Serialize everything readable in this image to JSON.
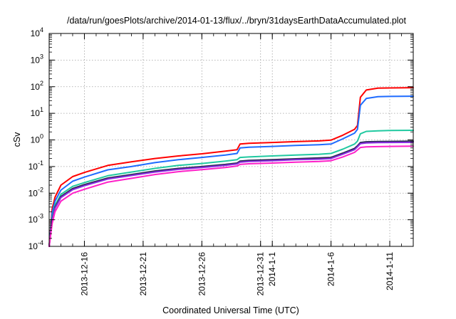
{
  "chart_data": {
    "type": "line",
    "title": "/data/run/goesPlots/archive/2014-01-13/flux/../bryn/31daysEarthDataAccumulated.plot",
    "xlabel": "Coordinated Universal Time (UTC)",
    "ylabel": "cSv",
    "y_scale": "log",
    "ylim": [
      0.0001,
      10000
    ],
    "xlim": [
      "2013-12-13",
      "2014-01-13"
    ],
    "grid": true,
    "y_ticks": [
      {
        "mant": "10",
        "exp": "-4",
        "value": 0.0001
      },
      {
        "mant": "10",
        "exp": "-3",
        "value": 0.001
      },
      {
        "mant": "10",
        "exp": "-2",
        "value": 0.01
      },
      {
        "mant": "10",
        "exp": "-1",
        "value": 0.1
      },
      {
        "mant": "10",
        "exp": "0",
        "value": 1
      },
      {
        "mant": "10",
        "exp": "1",
        "value": 10
      },
      {
        "mant": "10",
        "exp": "2",
        "value": 100
      },
      {
        "mant": "10",
        "exp": "3",
        "value": 1000
      },
      {
        "mant": "10",
        "exp": "4",
        "value": 10000
      }
    ],
    "x_ticks": [
      {
        "label": "2013-12-16",
        "date": "2013-12-16"
      },
      {
        "label": "2013-12-21",
        "date": "2013-12-21"
      },
      {
        "label": "2013-12-26",
        "date": "2013-12-26"
      },
      {
        "label": "2013-12-31",
        "date": "2013-12-31"
      },
      {
        "label": "2014-1-1",
        "date": "2014-01-01"
      },
      {
        "label": "2014-1-6",
        "date": "2014-01-06"
      },
      {
        "label": "2014-1-11",
        "date": "2014-01-11"
      }
    ],
    "series": [
      {
        "color": "#ff0000",
        "points": [
          [
            "2013-12-13",
            0.0001
          ],
          [
            "2013-12-13T06",
            0.0025
          ],
          [
            "2013-12-13T12",
            0.007
          ],
          [
            "2013-12-14",
            0.02
          ],
          [
            "2013-12-15",
            0.042
          ],
          [
            "2013-12-16",
            0.06
          ],
          [
            "2013-12-18",
            0.11
          ],
          [
            "2013-12-20",
            0.15
          ],
          [
            "2013-12-22",
            0.2
          ],
          [
            "2013-12-24",
            0.25
          ],
          [
            "2013-12-26",
            0.3
          ],
          [
            "2013-12-28",
            0.38
          ],
          [
            "2013-12-29",
            0.43
          ],
          [
            "2013-12-29T06",
            0.7
          ],
          [
            "2013-12-30",
            0.75
          ],
          [
            "2014-01-01",
            0.8
          ],
          [
            "2014-01-03",
            0.86
          ],
          [
            "2014-01-05",
            0.92
          ],
          [
            "2014-01-06",
            0.98
          ],
          [
            "2014-01-07",
            1.5
          ],
          [
            "2014-01-08",
            2.5
          ],
          [
            "2014-01-08T06",
            3.5
          ],
          [
            "2014-01-08T12",
            40
          ],
          [
            "2014-01-09",
            75
          ],
          [
            "2014-01-10",
            88
          ],
          [
            "2014-01-11",
            90
          ],
          [
            "2014-01-13",
            92
          ]
        ]
      },
      {
        "color": "#1e6bff",
        "points": [
          [
            "2013-12-13",
            0.0001
          ],
          [
            "2013-12-13T06",
            0.0018
          ],
          [
            "2013-12-13T12",
            0.005
          ],
          [
            "2013-12-14",
            0.013
          ],
          [
            "2013-12-15",
            0.028
          ],
          [
            "2013-12-16",
            0.04
          ],
          [
            "2013-12-18",
            0.075
          ],
          [
            "2013-12-20",
            0.1
          ],
          [
            "2013-12-22",
            0.14
          ],
          [
            "2013-12-24",
            0.18
          ],
          [
            "2013-12-26",
            0.22
          ],
          [
            "2013-12-28",
            0.27
          ],
          [
            "2013-12-29",
            0.31
          ],
          [
            "2013-12-29T06",
            0.5
          ],
          [
            "2013-12-30",
            0.53
          ],
          [
            "2014-01-01",
            0.57
          ],
          [
            "2014-01-03",
            0.62
          ],
          [
            "2014-01-05",
            0.66
          ],
          [
            "2014-01-06",
            0.7
          ],
          [
            "2014-01-07",
            1.1
          ],
          [
            "2014-01-08",
            1.8
          ],
          [
            "2014-01-08T06",
            2.5
          ],
          [
            "2014-01-08T12",
            20
          ],
          [
            "2014-01-09",
            36
          ],
          [
            "2014-01-10",
            42
          ],
          [
            "2014-01-11",
            43
          ],
          [
            "2014-01-13",
            44
          ]
        ]
      },
      {
        "color": "#20c9a0",
        "points": [
          [
            "2013-12-13",
            0.0001
          ],
          [
            "2013-12-13T06",
            0.0012
          ],
          [
            "2013-12-13T12",
            0.0035
          ],
          [
            "2013-12-14",
            0.009
          ],
          [
            "2013-12-15",
            0.018
          ],
          [
            "2013-12-16",
            0.025
          ],
          [
            "2013-12-18",
            0.045
          ],
          [
            "2013-12-20",
            0.062
          ],
          [
            "2013-12-22",
            0.085
          ],
          [
            "2013-12-24",
            0.11
          ],
          [
            "2013-12-26",
            0.13
          ],
          [
            "2013-12-28",
            0.16
          ],
          [
            "2013-12-29",
            0.18
          ],
          [
            "2013-12-29T06",
            0.22
          ],
          [
            "2013-12-30",
            0.23
          ],
          [
            "2014-01-01",
            0.25
          ],
          [
            "2014-01-03",
            0.27
          ],
          [
            "2014-01-05",
            0.29
          ],
          [
            "2014-01-06",
            0.31
          ],
          [
            "2014-01-07",
            0.45
          ],
          [
            "2014-01-08",
            0.7
          ],
          [
            "2014-01-08T06",
            0.9
          ],
          [
            "2014-01-08T12",
            1.7
          ],
          [
            "2014-01-09",
            2.1
          ],
          [
            "2014-01-10",
            2.2
          ],
          [
            "2014-01-11",
            2.25
          ],
          [
            "2014-01-13",
            2.3
          ]
        ]
      },
      {
        "color": "#2a2a50",
        "points": [
          [
            "2013-12-13",
            0.0001
          ],
          [
            "2013-12-13T06",
            0.001
          ],
          [
            "2013-12-13T12",
            0.003
          ],
          [
            "2013-12-14",
            0.0075
          ],
          [
            "2013-12-15",
            0.015
          ],
          [
            "2013-12-16",
            0.021
          ],
          [
            "2013-12-18",
            0.037
          ],
          [
            "2013-12-20",
            0.05
          ],
          [
            "2013-12-22",
            0.068
          ],
          [
            "2013-12-24",
            0.085
          ],
          [
            "2013-12-26",
            0.1
          ],
          [
            "2013-12-28",
            0.12
          ],
          [
            "2013-12-29",
            0.135
          ],
          [
            "2013-12-29T06",
            0.16
          ],
          [
            "2013-12-30",
            0.17
          ],
          [
            "2014-01-01",
            0.18
          ],
          [
            "2014-01-03",
            0.195
          ],
          [
            "2014-01-05",
            0.21
          ],
          [
            "2014-01-06",
            0.22
          ],
          [
            "2014-01-07",
            0.32
          ],
          [
            "2014-01-08",
            0.48
          ],
          [
            "2014-01-08T06",
            0.6
          ],
          [
            "2014-01-08T12",
            0.8
          ],
          [
            "2014-01-09",
            0.85
          ],
          [
            "2014-01-10",
            0.87
          ],
          [
            "2014-01-11",
            0.88
          ],
          [
            "2014-01-13",
            0.9
          ]
        ]
      },
      {
        "color": "#8a2be2",
        "points": [
          [
            "2013-12-13",
            0.0001
          ],
          [
            "2013-12-13T06",
            0.0009
          ],
          [
            "2013-12-13T12",
            0.0027
          ],
          [
            "2013-12-14",
            0.0068
          ],
          [
            "2013-12-15",
            0.0135
          ],
          [
            "2013-12-16",
            0.019
          ],
          [
            "2013-12-18",
            0.034
          ],
          [
            "2013-12-20",
            0.046
          ],
          [
            "2013-12-22",
            0.062
          ],
          [
            "2013-12-24",
            0.078
          ],
          [
            "2013-12-26",
            0.092
          ],
          [
            "2013-12-28",
            0.11
          ],
          [
            "2013-12-29",
            0.125
          ],
          [
            "2013-12-29T06",
            0.145
          ],
          [
            "2013-12-30",
            0.155
          ],
          [
            "2014-01-01",
            0.165
          ],
          [
            "2014-01-03",
            0.18
          ],
          [
            "2014-01-05",
            0.19
          ],
          [
            "2014-01-06",
            0.2
          ],
          [
            "2014-01-07",
            0.29
          ],
          [
            "2014-01-08",
            0.43
          ],
          [
            "2014-01-08T06",
            0.55
          ],
          [
            "2014-01-08T12",
            0.72
          ],
          [
            "2014-01-09",
            0.77
          ],
          [
            "2014-01-10",
            0.79
          ],
          [
            "2014-01-11",
            0.8
          ],
          [
            "2014-01-13",
            0.81
          ]
        ]
      },
      {
        "color": "#ff1fc8",
        "points": [
          [
            "2013-12-13",
            0.0001
          ],
          [
            "2013-12-13T06",
            0.0007
          ],
          [
            "2013-12-13T12",
            0.002
          ],
          [
            "2013-12-14",
            0.005
          ],
          [
            "2013-12-15",
            0.01
          ],
          [
            "2013-12-16",
            0.014
          ],
          [
            "2013-12-18",
            0.026
          ],
          [
            "2013-12-20",
            0.036
          ],
          [
            "2013-12-22",
            0.05
          ],
          [
            "2013-12-24",
            0.064
          ],
          [
            "2013-12-26",
            0.076
          ],
          [
            "2013-12-28",
            0.092
          ],
          [
            "2013-12-29",
            0.105
          ],
          [
            "2013-12-29T06",
            0.12
          ],
          [
            "2013-12-30",
            0.127
          ],
          [
            "2014-01-01",
            0.135
          ],
          [
            "2014-01-03",
            0.145
          ],
          [
            "2014-01-05",
            0.155
          ],
          [
            "2014-01-06",
            0.165
          ],
          [
            "2014-01-07",
            0.23
          ],
          [
            "2014-01-08",
            0.34
          ],
          [
            "2014-01-08T06",
            0.42
          ],
          [
            "2014-01-08T12",
            0.52
          ],
          [
            "2014-01-09",
            0.55
          ],
          [
            "2014-01-10",
            0.56
          ],
          [
            "2014-01-11",
            0.57
          ],
          [
            "2014-01-13",
            0.58
          ]
        ]
      }
    ]
  }
}
